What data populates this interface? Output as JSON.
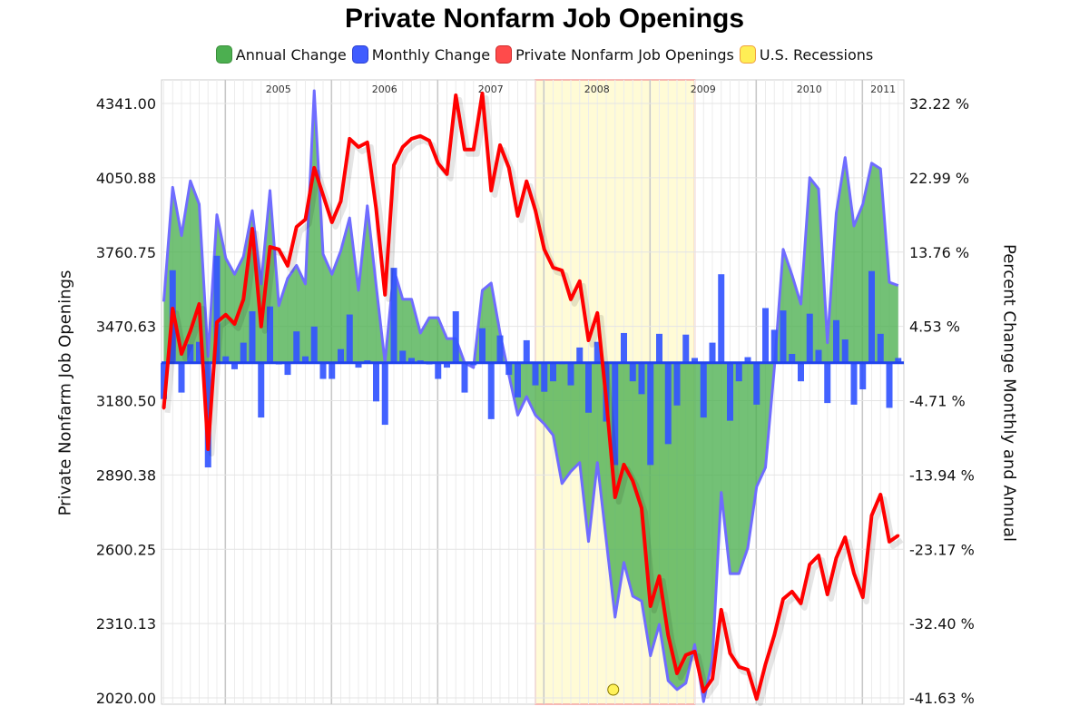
{
  "chart_data": {
    "type": "bar+line+area",
    "title": "Private Nonfarm Job Openings",
    "legend_position": "top",
    "legend": [
      {
        "label": "Annual Change",
        "color": "#4caf50"
      },
      {
        "label": "Monthly Change",
        "color": "#3355ff"
      },
      {
        "label": "Private Nonfarm Job Openings",
        "color": "#ff3b3b"
      },
      {
        "label": "U.S. Recessions",
        "color": "#ffee55"
      }
    ],
    "ylabel_left": "Private Nonfarm Job Openings",
    "ylabel_right": "Percent Change Monthly and Annual",
    "ylim_left": [
      2020.0,
      4341.0
    ],
    "ylim_right": [
      -41.63,
      32.22
    ],
    "yticks_left": [
      "4341.00",
      "4050.88",
      "3760.75",
      "3470.63",
      "3180.50",
      "2890.38",
      "2600.25",
      "2310.13",
      "2020.00"
    ],
    "yticks_right": [
      "32.22 %",
      "22.99 %",
      "13.76 %",
      "4.53 %",
      "-4.71 %",
      "-13.94 %",
      "-23.17 %",
      "-32.40 %",
      "-41.63 %"
    ],
    "xticks_top": [
      "2005",
      "2006",
      "2007",
      "2008",
      "2009",
      "2010",
      "2011"
    ],
    "grid": true,
    "recession": {
      "start": "2007-12",
      "end": "2009-06",
      "color": "#fffbd6",
      "border": "#f4a0a0"
    },
    "x": [
      "2004-06",
      "2004-07",
      "2004-08",
      "2004-09",
      "2004-10",
      "2004-11",
      "2004-12",
      "2005-01",
      "2005-02",
      "2005-03",
      "2005-04",
      "2005-05",
      "2005-06",
      "2005-07",
      "2005-08",
      "2005-09",
      "2005-10",
      "2005-11",
      "2005-12",
      "2006-01",
      "2006-02",
      "2006-03",
      "2006-04",
      "2006-05",
      "2006-06",
      "2006-07",
      "2006-08",
      "2006-09",
      "2006-10",
      "2006-11",
      "2006-12",
      "2007-01",
      "2007-02",
      "2007-03",
      "2007-04",
      "2007-05",
      "2007-06",
      "2007-07",
      "2007-08",
      "2007-09",
      "2007-10",
      "2007-11",
      "2007-12",
      "2008-01",
      "2008-02",
      "2008-03",
      "2008-04",
      "2008-05",
      "2008-06",
      "2008-07",
      "2008-08",
      "2008-09",
      "2008-10",
      "2008-11",
      "2008-12",
      "2009-01",
      "2009-02",
      "2009-03",
      "2009-04",
      "2009-05",
      "2009-06",
      "2009-07",
      "2009-08",
      "2009-09",
      "2009-10",
      "2009-11",
      "2009-12",
      "2010-01",
      "2010-02",
      "2010-03",
      "2010-04",
      "2010-05",
      "2010-06",
      "2010-07",
      "2010-08",
      "2010-09",
      "2010-10",
      "2010-11",
      "2010-12",
      "2011-01",
      "2011-02",
      "2011-03",
      "2011-04",
      "2011-05"
    ],
    "series": [
      {
        "name": "Private Nonfarm Job Openings",
        "type": "line",
        "axis": "left",
        "color": "#ff0000",
        "values": [
          3151,
          3540,
          3363,
          3452,
          3558,
          2991,
          3487,
          3516,
          3480,
          3576,
          3852,
          3470,
          3781,
          3771,
          3707,
          3859,
          3888,
          4090,
          3983,
          3877,
          3959,
          4203,
          4171,
          4189,
          3930,
          3594,
          4100,
          4171,
          4203,
          4214,
          4196,
          4107,
          4065,
          4373,
          4161,
          4161,
          4380,
          4001,
          4178,
          4090,
          3902,
          4037,
          3923,
          3771,
          3700,
          3689,
          3576,
          3647,
          3416,
          3523,
          3186,
          2803,
          2931,
          2867,
          2761,
          2378,
          2495,
          2265,
          2116,
          2187,
          2201,
          2045,
          2094,
          2364,
          2194,
          2141,
          2130,
          2016,
          2151,
          2265,
          2406,
          2435,
          2389,
          2541,
          2576,
          2424,
          2566,
          2647,
          2506,
          2413,
          2732,
          2814,
          2630,
          2654
        ]
      },
      {
        "name": "Annual Change",
        "type": "area",
        "axis": "right",
        "color": "#4caf50",
        "values": [
          7.6,
          21.8,
          15.8,
          22.6,
          19.7,
          0.8,
          18.4,
          13.0,
          11.0,
          13.2,
          18.9,
          9.8,
          21.4,
          7.1,
          10.5,
          12.1,
          9.8,
          33.8,
          13.5,
          11.0,
          13.9,
          18.0,
          9.0,
          19.5,
          9.6,
          0,
          11.6,
          7.9,
          7.9,
          3.7,
          5.6,
          5.6,
          3.0,
          3.0,
          0,
          -0.6,
          9.0,
          9.9,
          3.7,
          -1.5,
          -6.5,
          -4.2,
          -6.5,
          -7.6,
          -9.0,
          -15.0,
          -13.5,
          -12.4,
          -22.2,
          -12.4,
          -22.0,
          -31.6,
          -24.8,
          -29.0,
          -29.6,
          -36.4,
          -32.5,
          -39.5,
          -40.6,
          -39.8,
          -35.0,
          -42.1,
          -36.9,
          -16.1,
          -26.2,
          -26.2,
          -23.0,
          -15.4,
          -13.0,
          -0.7,
          14.1,
          10.9,
          7.3,
          23.0,
          21.6,
          2.5,
          18.6,
          25.5,
          17.0,
          19.7,
          24.8,
          24.1,
          10.0,
          9.6
        ]
      },
      {
        "name": "Monthly Change",
        "type": "bar",
        "axis": "right",
        "color": "#3355ff",
        "values": [
          -4.5,
          11.5,
          -3.7,
          2.3,
          2.6,
          -13.0,
          13.3,
          0.8,
          -0.8,
          2.5,
          6.4,
          -6.8,
          7.0,
          -0.2,
          -1.5,
          3.9,
          0.8,
          4.5,
          -2.0,
          -2.0,
          1.7,
          6.0,
          -0.6,
          0.3,
          -4.8,
          -7.7,
          11.8,
          1.5,
          0.6,
          0.3,
          -0.2,
          -2.0,
          -0.6,
          6.4,
          -3.7,
          -0.3,
          4.3,
          -7.0,
          3.4,
          -1.5,
          -4.3,
          2.8,
          -2.8,
          -3.6,
          -2.3,
          0,
          -2.8,
          1.9,
          -6.2,
          2.6,
          -7.3,
          -12.7,
          3.7,
          -2.3,
          -3.9,
          -12.7,
          3.6,
          -10.1,
          -5.3,
          3.5,
          0.6,
          -6.8,
          2.5,
          11.0,
          -7.2,
          -2.3,
          0.7,
          -5.2,
          6.8,
          4.1,
          6.5,
          1.1,
          -2.3,
          6.1,
          1.6,
          -5.0,
          5.3,
          2.9,
          -5.2,
          -3.3,
          11.4,
          3.6,
          -5.6,
          0.6
        ]
      }
    ]
  }
}
